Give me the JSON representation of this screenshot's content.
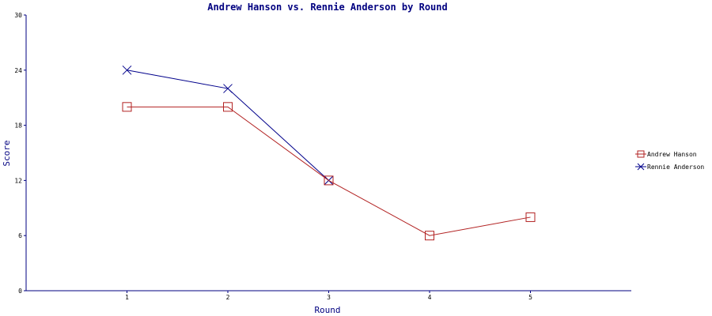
{
  "chart_data": {
    "type": "line",
    "title": "Andrew Hanson vs. Rennie Anderson by Round",
    "xlabel": "Round",
    "ylabel": "Score",
    "x": [
      1,
      2,
      3,
      4,
      5
    ],
    "xlim": [
      0,
      6
    ],
    "ylim": [
      0,
      30
    ],
    "yticks": [
      0,
      6,
      12,
      18,
      24,
      30
    ],
    "grid": false,
    "legend_position": "right",
    "series": [
      {
        "name": "Andrew Hanson",
        "marker": "square",
        "color": "#b22222",
        "x": [
          1,
          2,
          3,
          4,
          5
        ],
        "values": [
          20,
          20,
          12,
          6,
          8
        ]
      },
      {
        "name": "Rennie Anderson",
        "marker": "x",
        "color": "#00008b",
        "x": [
          1,
          2,
          3
        ],
        "values": [
          24,
          22,
          12
        ]
      }
    ]
  }
}
